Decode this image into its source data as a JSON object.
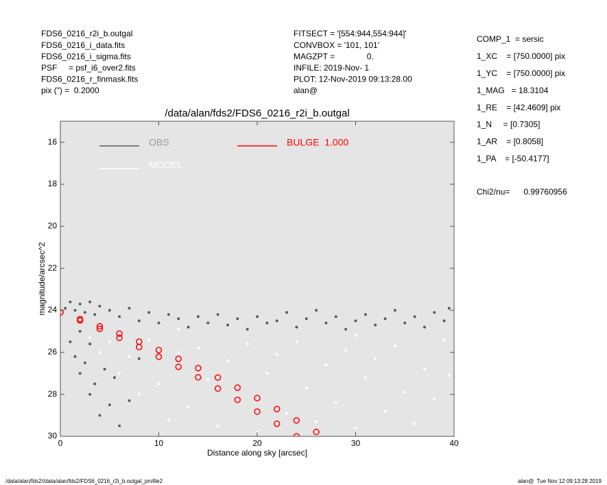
{
  "header": {
    "left": [
      "FDS6_0216_r2i_b.outgal",
      "FDS6_0216_i_data.fits",
      "FDS6_0216_i_sigma.fits",
      "PSF     = psf_i6_over2.fits",
      "FDS6_0216_r_finmask.fits",
      "pix (\") =  0.2000"
    ],
    "middle": [
      "FITSECT = '[554:944,554:944]'",
      "CONVBOX = '101, 101'",
      "MAGZPT =              0.",
      "INFILE: 2019-Nov- 1",
      "PLOT: 12-Nov-2019 09:13:28.00",
      "alan@"
    ],
    "right": [
      "COMP_1  = sersic",
      "1_XC    = [750.0000] pix",
      "1_YC    = [750.0000] pix",
      "1_MAG   = 18.3104",
      "1_RE    = [42.4609] pix",
      "1_N     = [0.7305]",
      "1_AR    = [0.8058]",
      "1_PA    = [-50.4177]"
    ],
    "chi2": "Chi2/nu=      0.99760956"
  },
  "footer": {
    "left": "/data/alan/fds2//data/alan/fds2/FDS6_0216_r2i_b.outgal_profile2",
    "right": "alan@  Tue Nov 12 09:13:28 2019"
  },
  "chart_data": {
    "type": "scatter",
    "title": "/data/alan/fds2/FDS6_0216_r2i_b.outgal",
    "x_label": "Distance along sky [arcsec]",
    "y_label": "magnitude/arcsec^2",
    "xlim": [
      0,
      40
    ],
    "xticks": [
      0,
      10,
      20,
      30,
      40
    ],
    "ylim": [
      15,
      30
    ],
    "yticks": [
      16,
      18,
      20,
      22,
      24,
      26,
      28,
      30
    ],
    "y_inverted": true,
    "background": "#e5e5e5",
    "series": [
      {
        "name": "OBS",
        "color": "#5a5a5a",
        "x": [
          0.5,
          1,
          1.5,
          2,
          2.5,
          3,
          3.5,
          4,
          5,
          6,
          7,
          8,
          9,
          10,
          11,
          12,
          13,
          14,
          15,
          16,
          17,
          18,
          19,
          20,
          21,
          22,
          23,
          24,
          25,
          26,
          27,
          28,
          29,
          30,
          31,
          32,
          33,
          34,
          35,
          36,
          37,
          38,
          39,
          39.5,
          1,
          1.5,
          2,
          2.5,
          3,
          3.5,
          4,
          4.5,
          5,
          5.5,
          6,
          7,
          8,
          2,
          3
        ],
        "values": [
          23.9,
          23.6,
          24.0,
          23.7,
          24.1,
          23.6,
          24.2,
          23.8,
          24.0,
          24.3,
          23.9,
          24.5,
          24.1,
          24.6,
          24.2,
          24.4,
          24.8,
          24.3,
          24.6,
          24.2,
          24.7,
          24.4,
          24.9,
          24.3,
          24.6,
          24.5,
          24.1,
          24.8,
          24.4,
          24.0,
          24.6,
          24.3,
          24.9,
          24.5,
          24.2,
          24.7,
          24.4,
          24.0,
          24.6,
          24.3,
          24.8,
          24.1,
          24.5,
          23.9,
          25.5,
          26.2,
          27.0,
          26.5,
          28.0,
          27.5,
          29.0,
          26.8,
          28.5,
          27.2,
          29.5,
          28.3,
          26.3,
          25.0,
          25.6
        ]
      },
      {
        "name": "MODEL",
        "color": "#ffffff",
        "x": [
          3,
          4,
          5,
          6,
          7,
          8,
          9,
          10,
          11,
          12,
          13,
          14,
          15,
          16,
          17,
          18,
          19,
          20,
          21,
          22,
          23,
          24,
          25,
          26,
          27,
          28,
          29,
          30,
          31,
          32,
          33,
          34,
          35,
          36,
          37,
          38,
          39,
          39.5,
          12,
          30
        ],
        "values": [
          25.3,
          26.0,
          25.5,
          27.0,
          26.2,
          28.0,
          25.4,
          27.5,
          29.2,
          26.0,
          28.6,
          25.8,
          27.3,
          29.5,
          26.4,
          28.1,
          25.6,
          29.8,
          27.0,
          26.1,
          28.9,
          25.5,
          27.7,
          29.3,
          26.6,
          28.4,
          25.9,
          29.6,
          27.2,
          26.3,
          28.8,
          25.7,
          27.9,
          29.4,
          26.8,
          28.2,
          25.4,
          27.1,
          24.9,
          25.2
        ]
      },
      {
        "name": "BULGE  1.000",
        "color": "#ff0000",
        "x": [
          0,
          2,
          4,
          6,
          8,
          10,
          12,
          14,
          16,
          18,
          20,
          22,
          24,
          26,
          0,
          2,
          4,
          6,
          8,
          10,
          12,
          14,
          16,
          18,
          20,
          22,
          24
        ],
        "values": [
          24.1,
          24.42,
          24.76,
          25.11,
          25.49,
          25.89,
          26.31,
          26.75,
          27.2,
          27.68,
          28.18,
          28.7,
          29.24,
          29.79,
          24.1,
          24.48,
          24.88,
          25.31,
          25.75,
          26.21,
          26.69,
          27.19,
          27.72,
          28.26,
          28.82,
          29.4,
          30.0
        ]
      }
    ]
  }
}
